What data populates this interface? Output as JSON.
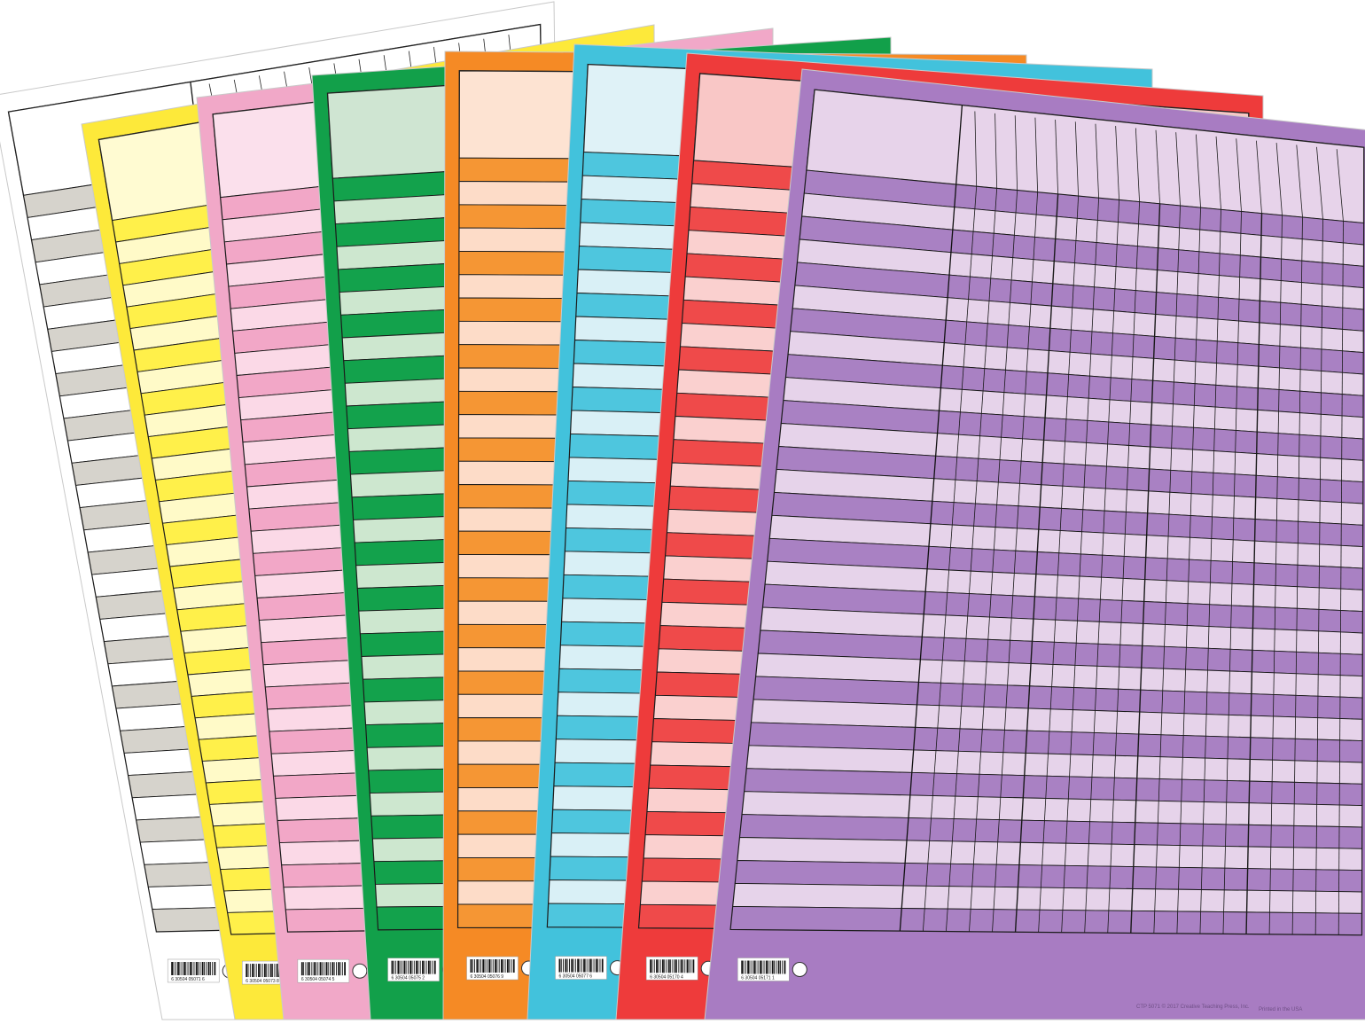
{
  "charts": [
    {
      "name": "white-chart",
      "frame": "#ffffff",
      "header": "#ffffff",
      "dark": "#d6d3cc",
      "light": "#ffffff",
      "barcode": "6 30504 05071 6"
    },
    {
      "name": "yellow-chart",
      "frame": "#fde93a",
      "header": "#fffbd2",
      "dark": "#fff04a",
      "light": "#fffac8",
      "barcode": "6 30504 05073 8"
    },
    {
      "name": "pink-chart",
      "frame": "#f1a8c8",
      "header": "#fbe0ec",
      "dark": "#f2a7c7",
      "light": "#fbd9e7",
      "barcode": "6 30504 05074 5"
    },
    {
      "name": "green-chart",
      "frame": "#12a04a",
      "header": "#cfe5d2",
      "dark": "#13a24c",
      "light": "#cde7cf",
      "barcode": "6 30504 05075 2"
    },
    {
      "name": "orange-chart",
      "frame": "#f58a25",
      "header": "#fde3d2",
      "dark": "#f59634",
      "light": "#fddcc8",
      "barcode": "6 30504 05076 9"
    },
    {
      "name": "blue-chart",
      "frame": "#42c2dc",
      "header": "#dff2f7",
      "dark": "#4ec6de",
      "light": "#d9f0f6",
      "barcode": "6 30504 05077 6"
    },
    {
      "name": "red-chart",
      "frame": "#ee3b3b",
      "header": "#f9c7c6",
      "dark": "#ef4a4a",
      "light": "#fad0cf",
      "barcode": "6 30504 05170 4"
    },
    {
      "name": "purple-chart",
      "frame": "#a87cc2",
      "header": "#e7d3ea",
      "dark": "#a981c3",
      "light": "#e6d3ea",
      "barcode": "6 30504 05171 1"
    }
  ],
  "footer": {
    "code": "CTP 5071 © 2017 Creative Teaching Press, Inc.",
    "printed": "Printed in the USA"
  }
}
